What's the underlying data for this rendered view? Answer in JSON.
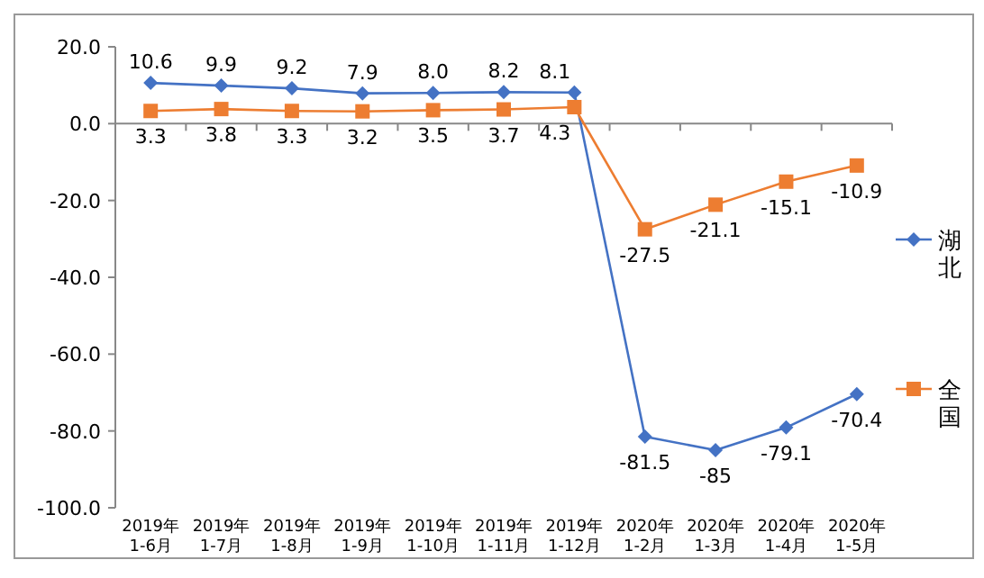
{
  "chart_data": {
    "type": "line",
    "categories": [
      "2019年1-6月",
      "2019年1-7月",
      "2019年1-8月",
      "2019年1-9月",
      "2019年1-10月",
      "2019年1-11月",
      "2019年1-12月",
      "2020年1-2月",
      "2020年1-3月",
      "2020年1-4月",
      "2020年1-5月"
    ],
    "series": [
      {
        "name": "湖北",
        "color": "#4472c4",
        "marker": "diamond",
        "values": [
          10.6,
          9.9,
          9.2,
          7.9,
          8.0,
          8.2,
          8.1,
          -81.5,
          -85,
          -79.1,
          -70.4
        ],
        "value_labels": [
          "10.6",
          "9.9",
          "9.2",
          "7.9",
          "8.0",
          "8.2",
          "8.1",
          "-81.5",
          "-85",
          "-79.1",
          "-70.4"
        ]
      },
      {
        "name": "全国",
        "color": "#ed7d31",
        "marker": "square",
        "values": [
          3.3,
          3.8,
          3.3,
          3.2,
          3.5,
          3.7,
          4.3,
          -27.5,
          -21.1,
          -15.1,
          -10.9
        ],
        "value_labels": [
          "3.3",
          "3.8",
          "3.3",
          "3.2",
          "3.5",
          "3.7",
          "4.3",
          "-27.5",
          "-21.1",
          "-15.1",
          "-10.9"
        ]
      }
    ],
    "ylim": [
      -100,
      20
    ],
    "yticks": [
      {
        "value": 20,
        "label": "20.0"
      },
      {
        "value": 0,
        "label": "0.0"
      },
      {
        "value": -20,
        "label": "-20.0"
      },
      {
        "value": -40,
        "label": "-40.0"
      },
      {
        "value": -60,
        "label": "-60.0"
      },
      {
        "value": -80,
        "label": "-80.0"
      },
      {
        "value": -100,
        "label": "-100.0"
      }
    ],
    "legend": "right"
  }
}
